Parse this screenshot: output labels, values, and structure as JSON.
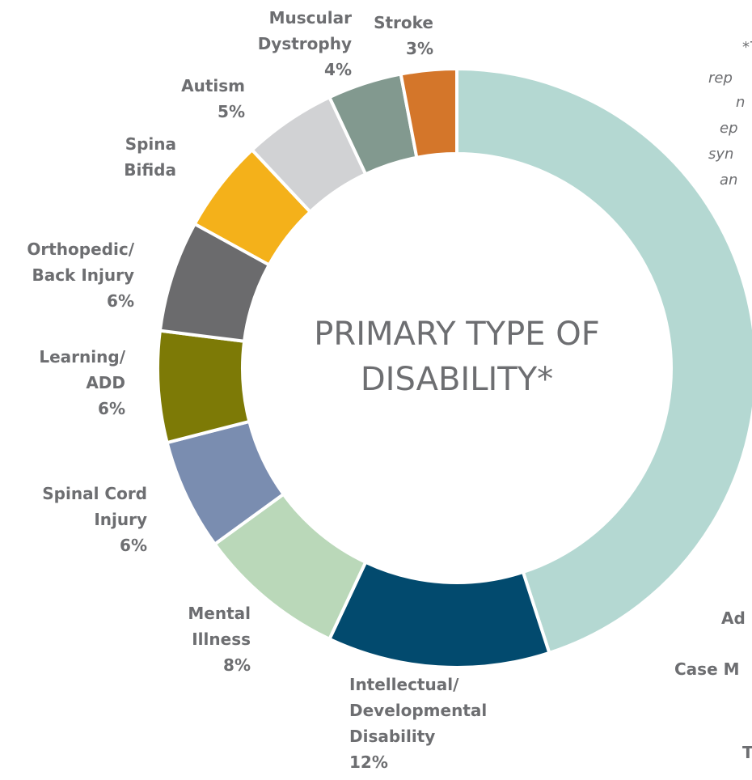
{
  "chart_data": {
    "type": "donut",
    "title": "PRIMARY TYPE OF DISABILITY*",
    "categories": [
      null,
      "Intellectual/ Developmental Disability",
      "Mental Illness",
      "Spinal Cord Injury",
      "Learning/ ADD",
      "Orthopedic/ Back Injury",
      "Spina Bifida",
      "Autism",
      "Muscular Dystrophy",
      "Stroke"
    ],
    "values": [
      45,
      12,
      8,
      6,
      6,
      6,
      5,
      5,
      4,
      3
    ],
    "value_labels": [
      null,
      "12%",
      "8%",
      "6%",
      "6%",
      "6%",
      null,
      "5%",
      "4%",
      "3%"
    ],
    "colors": [
      "#b4d8d2",
      "#024a6e",
      "#bad8b9",
      "#7a8db0",
      "#7d7a06",
      "#6b6b6d",
      "#f4b11a",
      "#d1d2d4",
      "#82998f",
      "#d4762a"
    ],
    "annotations": [
      "*T",
      "rep",
      "n",
      "ep",
      "syn",
      "an",
      "Ad",
      "Case M",
      "T"
    ]
  }
}
